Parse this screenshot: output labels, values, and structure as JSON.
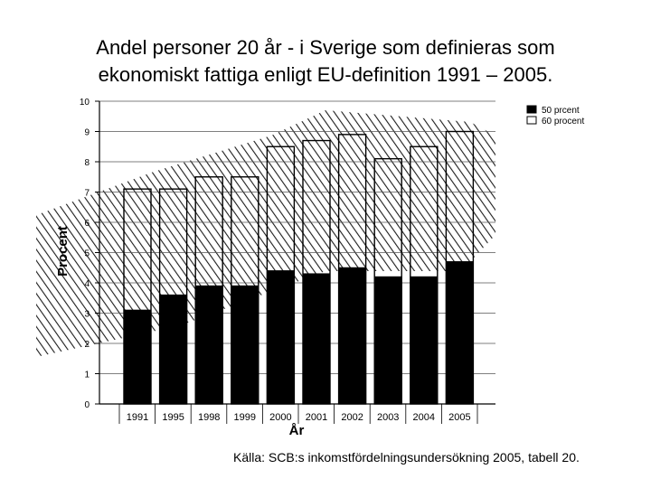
{
  "slide": {
    "title_line1": "Andel personer 20 år - i Sverige som definieras som",
    "title_line2": "ekonomiskt fattiga enligt EU-definition 1991 – 2005.",
    "source": "Källa: SCB:s inkomstfördelningsundersökning 2005, tabell 20."
  },
  "chart_data": {
    "type": "bar",
    "categories": [
      "1991",
      "1995",
      "1998",
      "1999",
      "2000",
      "2001",
      "2002",
      "2003",
      "2004",
      "2005"
    ],
    "series": [
      {
        "name": "50 prcent",
        "values": [
          3.1,
          3.6,
          3.9,
          3.9,
          4.4,
          4.3,
          4.5,
          4.2,
          4.2,
          4.7
        ],
        "color": "#000000"
      },
      {
        "name": "60 procent",
        "values": [
          7.1,
          7.1,
          7.5,
          7.5,
          8.5,
          8.7,
          8.9,
          8.1,
          8.5,
          9.0
        ],
        "color": "#ffffff"
      }
    ],
    "ylabel": "Procent",
    "xlabel": "År",
    "ylim": [
      0,
      10
    ],
    "yticks": [
      "0",
      "1",
      "2",
      "3",
      "4",
      "5",
      "6",
      "7",
      "8",
      "9",
      "10"
    ],
    "grid": true,
    "legend_position": "top-right",
    "overlapping_bars": true
  }
}
